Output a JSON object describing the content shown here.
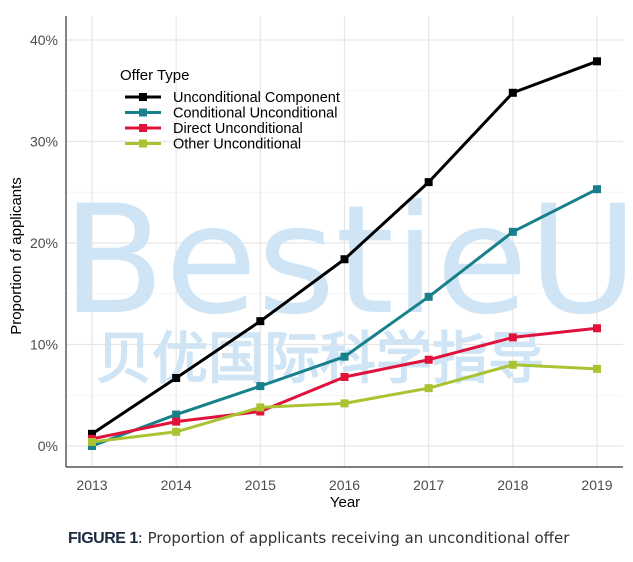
{
  "chart_data": {
    "type": "line",
    "title": "",
    "xlabel": "Year",
    "ylabel": "Proportion of applicants",
    "x": [
      2013,
      2014,
      2015,
      2016,
      2017,
      2018,
      2019
    ],
    "x_tick_labels": [
      "2013",
      "2014",
      "2015",
      "2016",
      "2017",
      "2018",
      "2019"
    ],
    "y_ticks": [
      0,
      10,
      20,
      30,
      40
    ],
    "y_tick_labels": [
      "0%",
      "10%",
      "20%",
      "30%",
      "40%"
    ],
    "ylim": [
      -2,
      42
    ],
    "y_units": "percent",
    "grid": true,
    "legend": {
      "title": "Offer Type",
      "placement": "top-left"
    },
    "series": [
      {
        "name": "Unconditional Component",
        "color": "#000000",
        "values": [
          1.2,
          6.7,
          12.3,
          18.4,
          26.0,
          34.8,
          37.9
        ]
      },
      {
        "name": "Conditional Unconditional",
        "color": "#17808a",
        "values": [
          0.0,
          3.1,
          5.9,
          8.8,
          14.7,
          21.1,
          25.3
        ]
      },
      {
        "name": "Direct Unconditional",
        "color": "#e0123c",
        "values": [
          0.7,
          2.4,
          3.4,
          6.8,
          8.5,
          10.7,
          11.6
        ]
      },
      {
        "name": "Other Unconditional",
        "color": "#a9c332",
        "values": [
          0.4,
          1.4,
          3.8,
          4.2,
          5.7,
          8.0,
          7.6
        ]
      }
    ]
  },
  "watermark": {
    "latin": "BestieU",
    "cjk": "贝优国际科学指导"
  },
  "caption": {
    "label": "FIGURE 1",
    "text": ": Proportion of applicants receiving an unconditional offer"
  }
}
